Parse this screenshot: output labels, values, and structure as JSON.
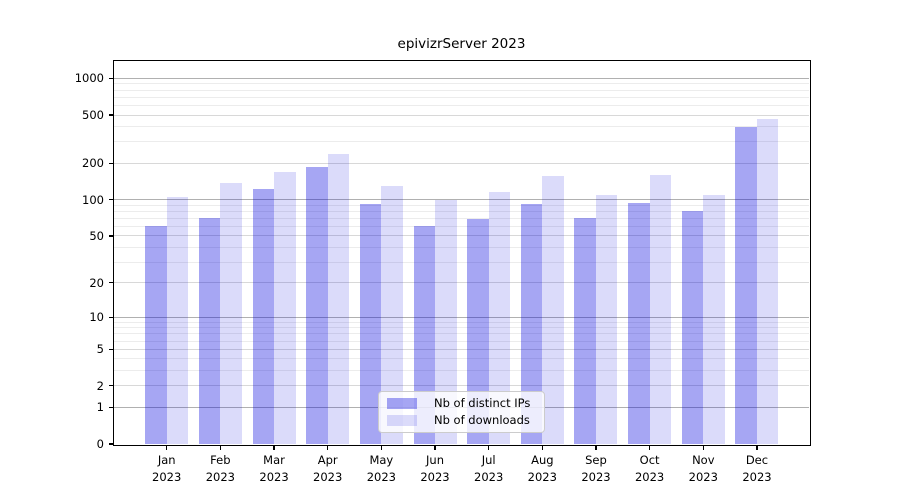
{
  "figure": {
    "title": "epivizrServer 2023",
    "background": "#ffffff"
  },
  "legend": {
    "items": [
      {
        "label": "Nb of distinct IPs",
        "color": "rgba(0,0,220,0.35)"
      },
      {
        "label": "Nb of downloads",
        "color": "rgba(0,0,220,0.14)"
      }
    ]
  },
  "chart_data": {
    "type": "bar",
    "title": "epivizrServer 2023",
    "categories": [
      "Jan",
      "Feb",
      "Mar",
      "Apr",
      "May",
      "Jun",
      "Jul",
      "Aug",
      "Sep",
      "Oct",
      "Nov",
      "Dec"
    ],
    "year": "2023",
    "series": [
      {
        "name": "Nb of distinct IPs",
        "color": "rgba(0,0,220,0.35)",
        "values": [
          61,
          70,
          123,
          187,
          93,
          61,
          69,
          93,
          70,
          94,
          81,
          400
        ]
      },
      {
        "name": "Nb of downloads",
        "color": "rgba(0,0,220,0.14)",
        "values": [
          105,
          137,
          170,
          240,
          131,
          100,
          117,
          156,
          110,
          159,
          109,
          460
        ]
      }
    ],
    "xlabel": "",
    "ylabel": "",
    "y_scale": "log1p",
    "y_ticks": [
      0,
      1,
      2,
      5,
      10,
      20,
      50,
      100,
      200,
      500,
      1000
    ],
    "y_top_value": 1390,
    "grid": true,
    "gridlines": {
      "major": [
        1,
        10,
        100,
        1000
      ],
      "mid": [
        2,
        5,
        20,
        50,
        200,
        500
      ],
      "minor": [
        3,
        4,
        6,
        7,
        8,
        9,
        30,
        40,
        60,
        70,
        80,
        90,
        300,
        400,
        600,
        700,
        800,
        900
      ]
    },
    "legend_position": "lower center",
    "bar_colors": {
      "distinct_ips": "rgba(0,0,220,0.35)",
      "downloads": "rgba(0,0,220,0.14)"
    },
    "gridline_colors": {
      "major": "#b0b0b0",
      "mid": "#d8d8d8",
      "minor": "#ececec"
    }
  }
}
